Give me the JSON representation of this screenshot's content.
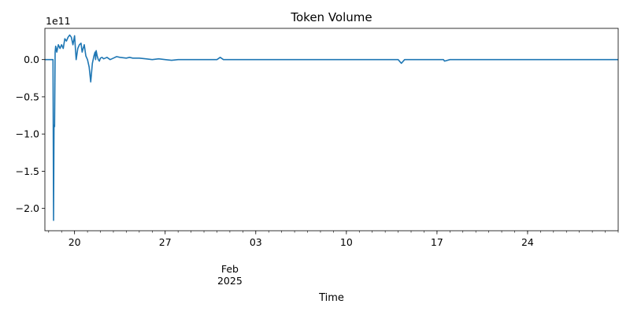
{
  "chart_data": {
    "type": "line",
    "title": "Token Volume",
    "xlabel": "Time",
    "ylabel": "",
    "y_scale_label": "1e11",
    "y_scale": 100000000000,
    "ylim": [
      -2.3,
      0.42
    ],
    "xlim": [
      "2025-01-17 17:00",
      "2025-03-03 00:00"
    ],
    "grid": false,
    "line_color": "#1f77b4",
    "y_ticks": [
      {
        "value": 0.0,
        "label": "0.0"
      },
      {
        "value": -0.5,
        "label": "−0.5"
      },
      {
        "value": -1.0,
        "label": "−1.0"
      },
      {
        "value": -1.5,
        "label": "−1.5"
      },
      {
        "value": -2.0,
        "label": "−2.0"
      }
    ],
    "x_major_ticks": [
      {
        "date": "2025-01-20",
        "label": "20"
      },
      {
        "date": "2025-01-27",
        "label": "27"
      },
      {
        "date": "2025-02-03",
        "label": "03"
      },
      {
        "date": "2025-02-10",
        "label": "10"
      },
      {
        "date": "2025-02-17",
        "label": "17"
      },
      {
        "date": "2025-02-24",
        "label": "24"
      }
    ],
    "x_secondary_label": {
      "date": "2025-02-01",
      "month": "Feb",
      "year": "2025"
    },
    "series": [
      {
        "x": [
          "2025-01-17 17:00",
          "2025-01-18 06:00",
          "2025-01-18 08:00",
          "2025-01-18 09:00",
          "2025-01-18 10:00",
          "2025-01-18 11:00",
          "2025-01-18 12:00",
          "2025-01-18 13:00",
          "2025-01-18 15:00",
          "2025-01-18 18:00",
          "2025-01-18 21:00",
          "2025-01-19 00:00",
          "2025-01-19 03:00",
          "2025-01-19 06:00",
          "2025-01-19 09:00",
          "2025-01-19 12:00",
          "2025-01-19 15:00",
          "2025-01-19 18:00",
          "2025-01-19 21:00",
          "2025-01-20 00:00",
          "2025-01-20 03:00",
          "2025-01-20 04:00",
          "2025-01-20 06:00",
          "2025-01-20 09:00",
          "2025-01-20 12:00",
          "2025-01-20 14:00",
          "2025-01-20 16:00",
          "2025-01-20 18:00",
          "2025-01-20 21:00",
          "2025-01-21 00:00",
          "2025-01-21 03:00",
          "2025-01-21 06:00",
          "2025-01-21 09:00",
          "2025-01-21 12:00",
          "2025-01-21 14:00",
          "2025-01-21 15:00",
          "2025-01-21 16:00",
          "2025-01-21 18:00",
          "2025-01-21 20:00",
          "2025-01-21 22:00",
          "2025-01-22 00:00",
          "2025-01-22 03:00",
          "2025-01-22 06:00",
          "2025-01-22 09:00",
          "2025-01-22 12:00",
          "2025-01-22 18:00",
          "2025-01-23 00:00",
          "2025-01-23 06:00",
          "2025-01-23 12:00",
          "2025-01-24 00:00",
          "2025-01-24 06:00",
          "2025-01-24 12:00",
          "2025-01-25 00:00",
          "2025-01-25 12:00",
          "2025-01-26 00:00",
          "2025-01-26 12:00",
          "2025-01-27 00:00",
          "2025-01-27 12:00",
          "2025-01-28 00:00",
          "2025-01-29 00:00",
          "2025-01-30 00:00",
          "2025-01-31 00:00",
          "2025-01-31 06:00",
          "2025-01-31 12:00",
          "2025-02-01 00:00",
          "2025-02-02 00:00",
          "2025-02-03 00:00",
          "2025-02-05 00:00",
          "2025-02-07 00:00",
          "2025-02-10 00:00",
          "2025-02-12 00:00",
          "2025-02-14 00:00",
          "2025-02-14 06:00",
          "2025-02-14 12:00",
          "2025-02-14 18:00",
          "2025-02-15 06:00",
          "2025-02-17 00:00",
          "2025-02-17 12:00",
          "2025-02-17 14:00",
          "2025-02-18 00:00",
          "2025-02-20 00:00",
          "2025-02-22 00:00",
          "2025-02-24 00:00",
          "2025-02-27 00:00",
          "2025-03-03 00:00"
        ],
        "values": [
          0.0,
          0.0,
          0.0,
          -2.16,
          -0.88,
          -0.9,
          0.1,
          0.18,
          0.1,
          0.2,
          0.15,
          0.2,
          0.15,
          0.28,
          0.25,
          0.3,
          0.33,
          0.3,
          0.2,
          0.32,
          0.0,
          0.05,
          0.15,
          0.2,
          0.22,
          0.1,
          0.15,
          0.2,
          0.05,
          0.0,
          -0.1,
          -0.3,
          -0.05,
          0.05,
          0.1,
          0.0,
          0.12,
          0.05,
          0.0,
          -0.02,
          0.02,
          0.03,
          0.01,
          0.02,
          0.03,
          0.0,
          0.02,
          0.04,
          0.03,
          0.02,
          0.03,
          0.02,
          0.02,
          0.01,
          0.0,
          0.01,
          0.0,
          -0.01,
          0.0,
          0.0,
          0.0,
          0.0,
          0.03,
          0.0,
          0.0,
          0.0,
          0.0,
          0.0,
          0.0,
          0.0,
          0.0,
          0.0,
          -0.05,
          0.0,
          0.0,
          0.0,
          0.0,
          0.0,
          -0.02,
          0.0,
          0.0,
          0.0,
          0.0,
          0.0,
          0.0
        ]
      }
    ]
  }
}
